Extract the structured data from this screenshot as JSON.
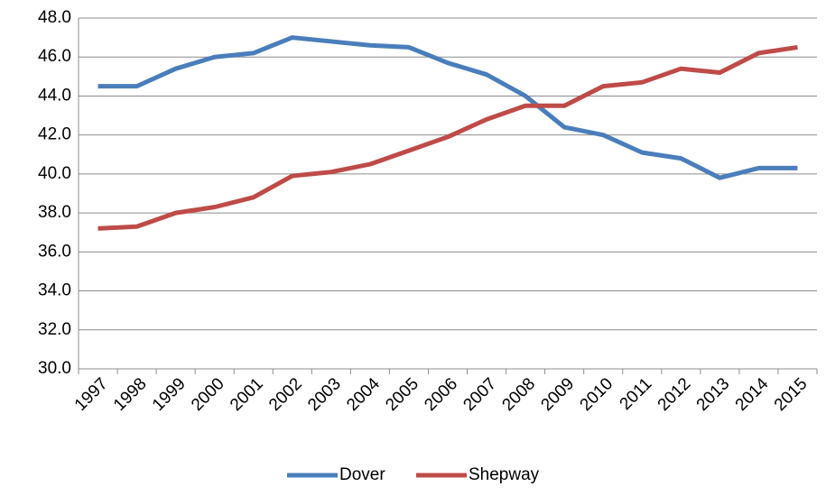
{
  "chart_data": {
    "type": "line",
    "categories": [
      "1997",
      "1998",
      "1999",
      "2000",
      "2001",
      "2002",
      "2003",
      "2004",
      "2005",
      "2006",
      "2007",
      "2008",
      "2009",
      "2010",
      "2011",
      "2012",
      "2013",
      "2014",
      "2015"
    ],
    "series": [
      {
        "name": "Dover",
        "color": "#4a7ebb",
        "values": [
          44.5,
          44.5,
          45.4,
          46.0,
          46.2,
          47.0,
          46.8,
          46.6,
          46.5,
          45.7,
          45.1,
          44.0,
          42.4,
          42.0,
          41.1,
          40.8,
          39.8,
          40.3,
          40.3
        ]
      },
      {
        "name": "Shepway",
        "color": "#be4b48",
        "values": [
          37.2,
          37.3,
          38.0,
          38.3,
          38.8,
          39.9,
          40.1,
          40.5,
          41.2,
          41.9,
          42.8,
          43.5,
          43.5,
          44.5,
          44.7,
          45.4,
          45.2,
          46.2,
          46.5
        ]
      }
    ],
    "ylim": [
      30,
      48
    ],
    "yticks": [
      {
        "value": 30,
        "label": "30.0"
      },
      {
        "value": 32,
        "label": "32.0"
      },
      {
        "value": 34,
        "label": "34.0"
      },
      {
        "value": 36,
        "label": "36.0"
      },
      {
        "value": 38,
        "label": "38.0"
      },
      {
        "value": 40,
        "label": "40.0"
      },
      {
        "value": 42,
        "label": "42.0"
      },
      {
        "value": 44,
        "label": "44.0"
      },
      {
        "value": 46,
        "label": "46.0"
      },
      {
        "value": 48,
        "label": "48.0"
      }
    ],
    "grid": true,
    "legend": "bottom"
  }
}
